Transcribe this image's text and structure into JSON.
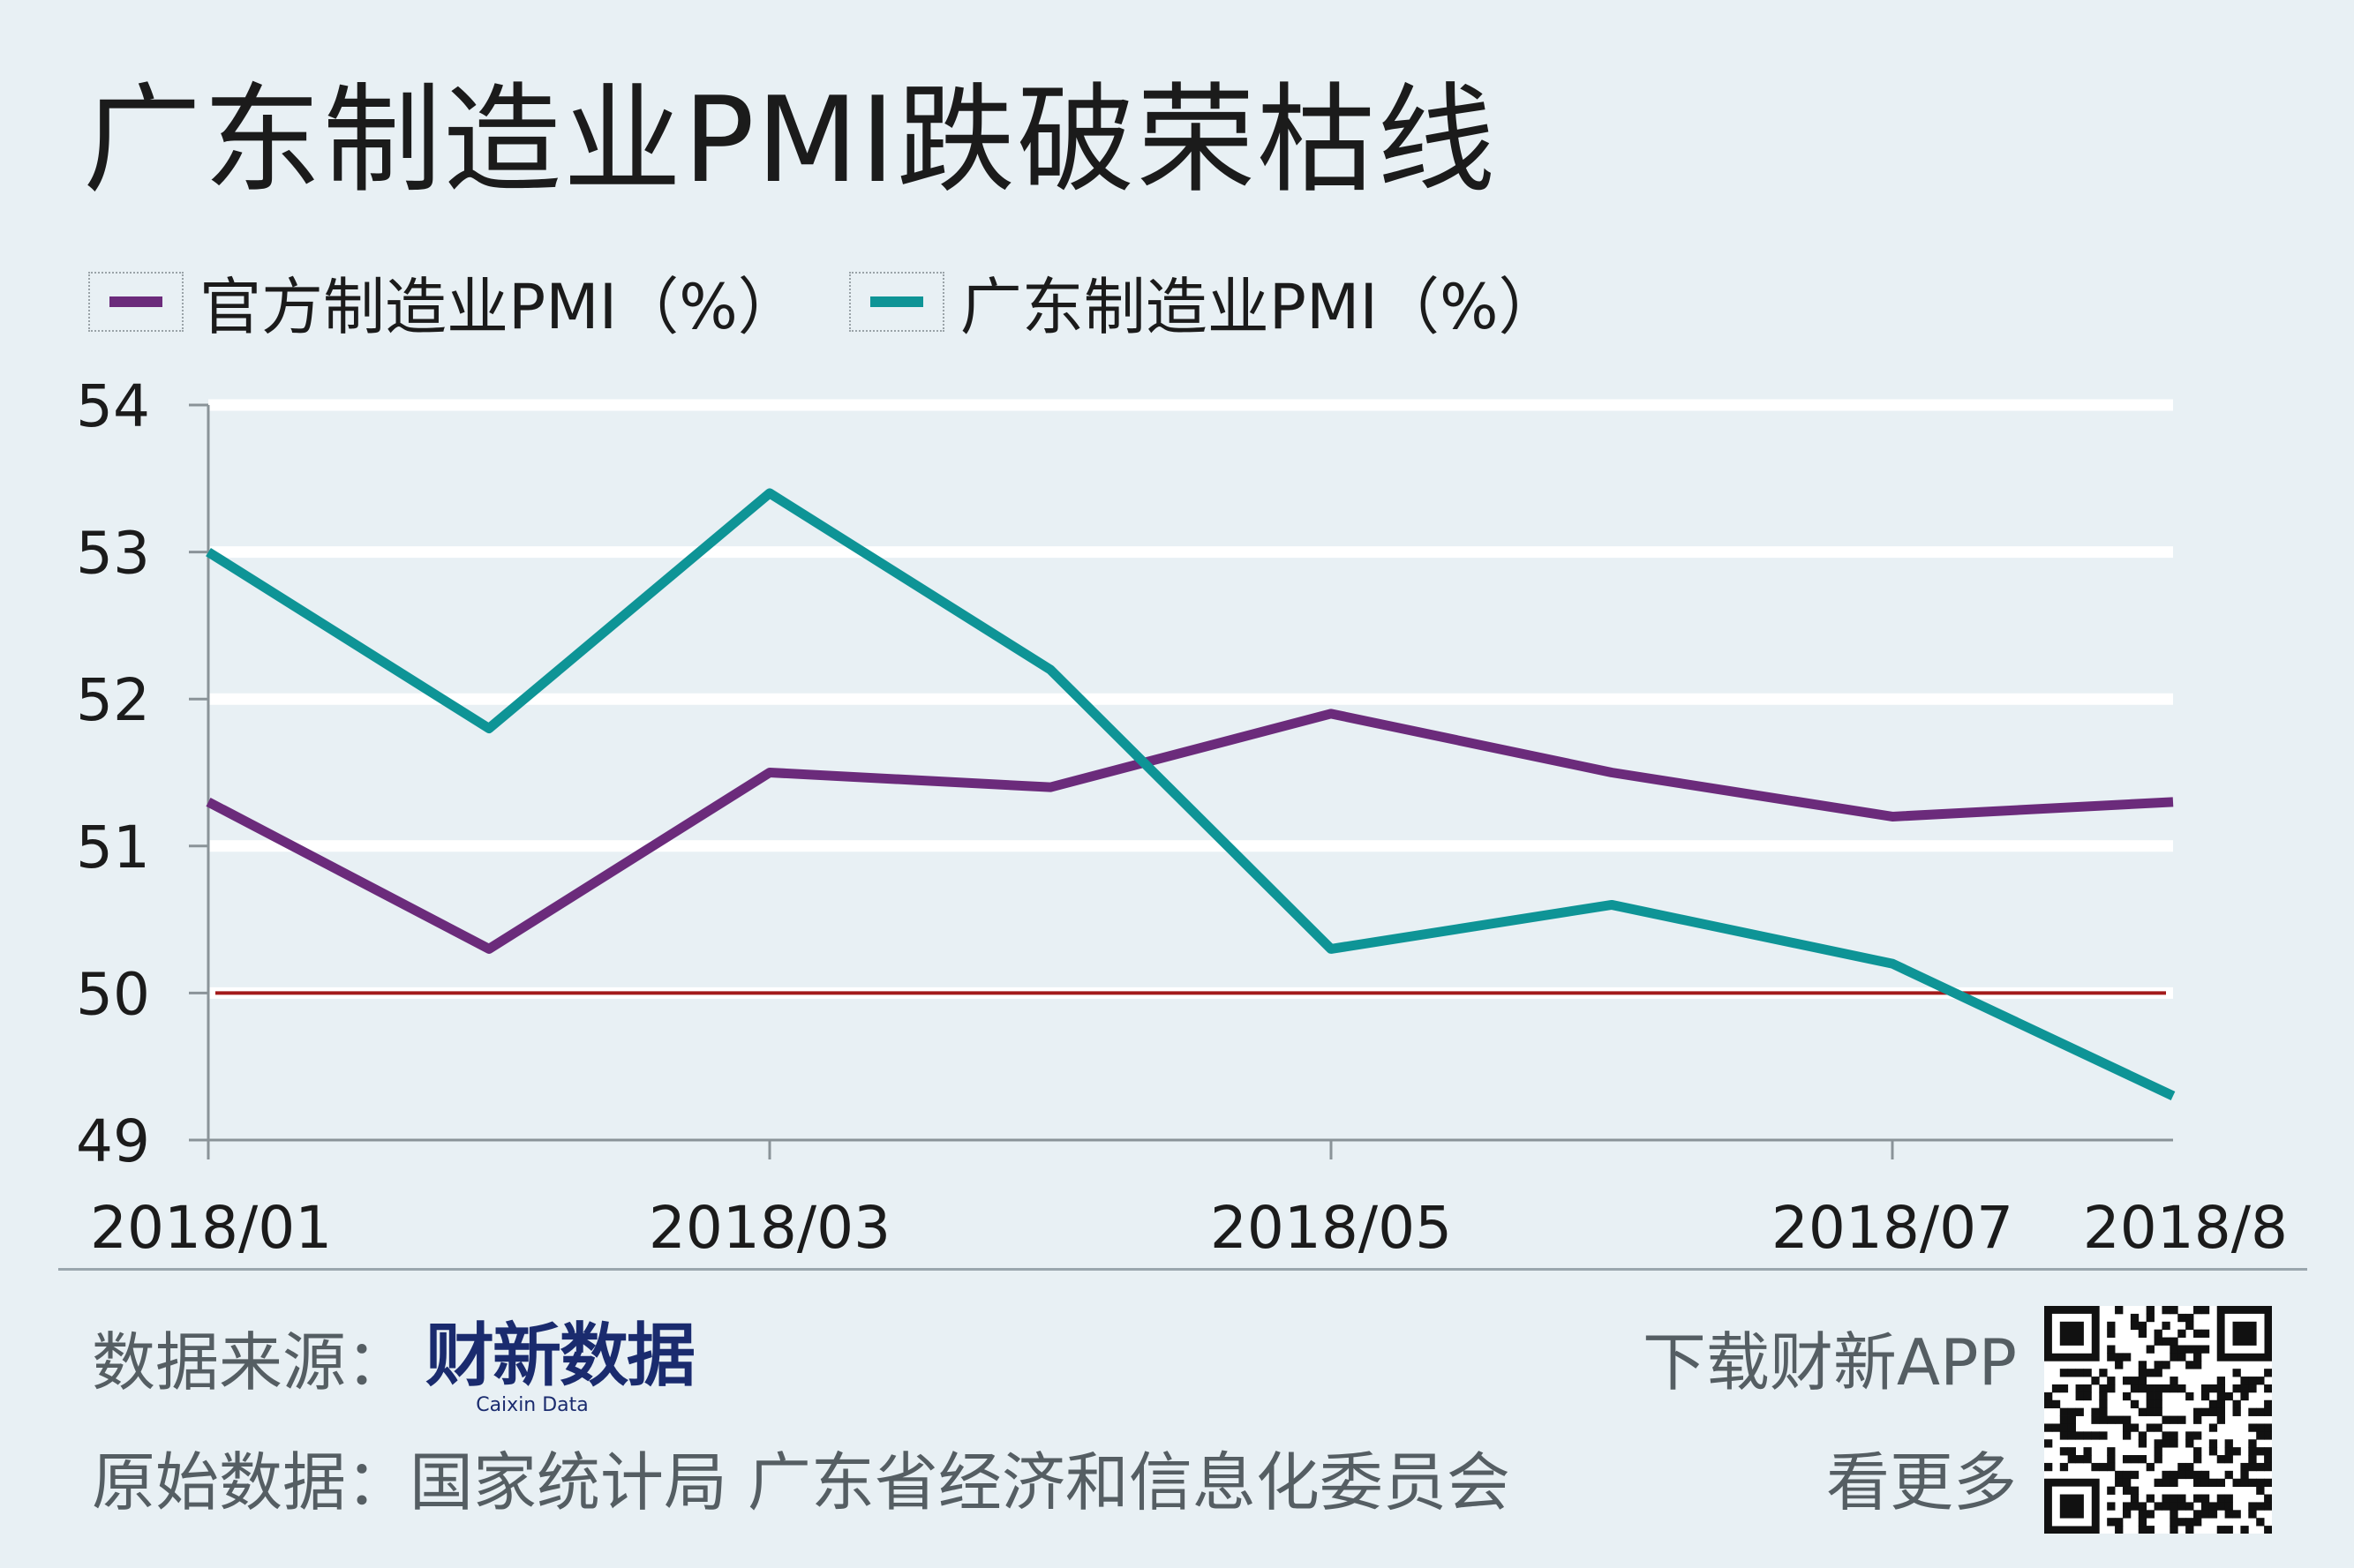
{
  "header": {
    "title": "广东制造业PMI跌破荣枯线"
  },
  "legend": [
    {
      "label": "官方制造业PMI（%）",
      "color": "#6b2b7b"
    },
    {
      "label": "广东制造业PMI（%）",
      "color": "#0e9496"
    }
  ],
  "chart_data": {
    "type": "line",
    "title": "广东制造业PMI跌破荣枯线",
    "x": [
      "2018/01",
      "2018/02",
      "2018/03",
      "2018/04",
      "2018/05",
      "2018/06",
      "2018/07",
      "2018/8"
    ],
    "x_tick_labels": [
      "2018/01",
      "",
      "2018/03",
      "",
      "2018/05",
      "",
      "2018/07",
      "2018/8"
    ],
    "y_ticks": [
      54,
      53,
      52,
      51,
      50,
      49
    ],
    "ylim": [
      49,
      54
    ],
    "grid": true,
    "reference_line": {
      "value": 50,
      "color": "#a31a1a"
    },
    "legend_position": "top-left",
    "series": [
      {
        "name": "官方制造业PMI（%）",
        "color": "#6b2b7b",
        "values": [
          51.3,
          50.3,
          51.5,
          51.4,
          51.9,
          51.5,
          51.2,
          51.3
        ]
      },
      {
        "name": "广东制造业PMI（%）",
        "color": "#0e9496",
        "values": [
          53.0,
          51.8,
          53.4,
          52.2,
          50.3,
          50.6,
          50.2,
          49.3
        ]
      }
    ]
  },
  "footer": {
    "source_label": "数据来源：",
    "logo_cn": "财新数据",
    "logo_en": "Caixin Data",
    "origin_label": "原始数据：国家统计局  广东省经济和信息化委员会",
    "app_label": "下载财新APP",
    "more_label": "看更多"
  }
}
